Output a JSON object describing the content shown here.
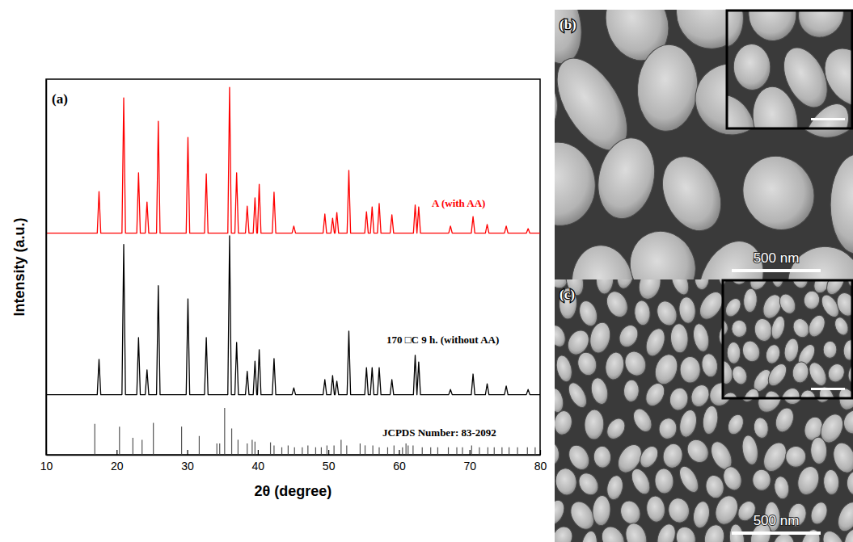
{
  "chart_data": {
    "type": "line",
    "panel_label": "(a)",
    "xlabel": "2θ (degree)",
    "ylabel": "Intensity (a.u.)",
    "xlim": [
      10,
      80
    ],
    "xticks": [
      10,
      20,
      30,
      40,
      50,
      60,
      70,
      80
    ],
    "ylim": [
      0,
      100
    ],
    "yticks": [],
    "tick_labels": "x",
    "x": [
      10,
      17.25,
      17.5,
      17.75,
      20.75,
      21,
      21.25,
      22.85,
      23.1,
      23.35,
      24.05,
      24.3,
      24.55,
      25.65,
      25.9,
      26.15,
      29.85,
      30.1,
      30.35,
      32.45,
      32.7,
      32.95,
      35.75,
      36,
      36.25,
      36.75,
      37,
      37.25,
      38.25,
      38.5,
      38.75,
      39.35,
      39.6,
      39.85,
      39.95,
      40.2,
      40.45,
      42.05,
      42.3,
      42.55,
      44.85,
      45.1,
      45.35,
      49.25,
      49.5,
      49.75,
      50.35,
      50.6,
      50.85,
      50.95,
      51.2,
      51.45,
      52.65,
      52.9,
      53.15,
      55.15,
      55.4,
      55.65,
      55.95,
      56.2,
      56.45,
      56.95,
      57.2,
      57.45,
      58.75,
      59,
      59.25,
      62.05,
      62.3,
      62.55,
      62.55,
      62.8,
      63.05,
      67.05,
      67.3,
      67.55,
      70.25,
      70.5,
      70.75,
      72.25,
      72.5,
      72.75,
      74.95,
      75.2,
      75.45,
      78.05,
      78.3,
      78.55,
      80
    ],
    "series": [
      {
        "name": "A (with AA)",
        "color": "#ff0000",
        "values": [
          59,
          59,
          70.1,
          59,
          59,
          95,
          59,
          59,
          75.1,
          59,
          59,
          67.3,
          59,
          59,
          88.8,
          59,
          59,
          84.5,
          59,
          59,
          74.8,
          59,
          59,
          97.8,
          59,
          59,
          75.1,
          59,
          59,
          66.2,
          59,
          59,
          68.4,
          59,
          59,
          72,
          59,
          59,
          69.9,
          59,
          59,
          60.9,
          59,
          59,
          64.1,
          59,
          59,
          63,
          59,
          59,
          64.5,
          59,
          59,
          75.7,
          59,
          59,
          64.7,
          59,
          59,
          66,
          59,
          59,
          66.9,
          59,
          59,
          63.9,
          59,
          59,
          66.5,
          59,
          59,
          66,
          59,
          59,
          60.9,
          59,
          59,
          63.4,
          59,
          59,
          61.3,
          59,
          59,
          60.9,
          59,
          59,
          60.2,
          59,
          59
        ]
      },
      {
        "name": "170 □C 9 h. (without AA)",
        "color": "#000000",
        "values": [
          16,
          16,
          25.4,
          16,
          16,
          56,
          16,
          16,
          31.2,
          16,
          16,
          22.6,
          16,
          16,
          45,
          16,
          16,
          41.5,
          16,
          16,
          31.2,
          16,
          16,
          58.3,
          16,
          16,
          29.9,
          16,
          16,
          22.2,
          16,
          16,
          24.9,
          16,
          16,
          28,
          16,
          16,
          25.6,
          16,
          16,
          17.8,
          16,
          16,
          20,
          16,
          16,
          21.1,
          16,
          16,
          19.6,
          16,
          16,
          32.9,
          16,
          16,
          23.2,
          16,
          16,
          23.2,
          16,
          16,
          23.2,
          16,
          16,
          20,
          16,
          16,
          26.5,
          16,
          16,
          24.7,
          16,
          16,
          17.4,
          16,
          16,
          21.5,
          16,
          16,
          18.9,
          16,
          16,
          18.3,
          16,
          16,
          17.4,
          16,
          16
        ]
      },
      {
        "name": "JCPDS Number: 83-2092",
        "type": "stick",
        "color": "#555555",
        "x": [
          16.9,
          20.4,
          22.3,
          23.6,
          25.2,
          29.2,
          31.7,
          34.2,
          34.6,
          35.3,
          36.3,
          37.2,
          38.5,
          39.2,
          39.6,
          41.8,
          42.3,
          43.4,
          44.3,
          45.2,
          46.3,
          47.1,
          48.2,
          49.0,
          49.8,
          50.8,
          51.8,
          52.6,
          54.5,
          55.2,
          56.3,
          57.2,
          58.4,
          59.3,
          60.5,
          61.0,
          61.3,
          62.0,
          63.3,
          64.5,
          65.5,
          67.0,
          68.2,
          69.0,
          70.3,
          71.4,
          72.6,
          73.5,
          74.6,
          75.6,
          76.8,
          78.2,
          79.3
        ],
        "values": [
          8.2,
          7.5,
          4.5,
          4,
          8.5,
          7.5,
          5,
          3,
          3,
          12.5,
          7,
          4,
          3,
          4,
          3.5,
          3.3,
          2.5,
          2,
          2.5,
          2,
          2,
          2.5,
          2,
          2,
          2.5,
          2.5,
          4,
          2.5,
          3,
          2.5,
          2.5,
          2,
          2,
          2.5,
          2,
          3,
          2.5,
          2.5,
          2,
          2,
          2,
          2,
          2,
          2,
          2.5,
          2,
          2,
          2,
          2,
          2,
          2,
          2,
          2
        ]
      }
    ]
  },
  "images": [
    {
      "label": "(b)",
      "scale_bar": "500 nm"
    },
    {
      "label": "(c)",
      "scale_bar": "500 nm"
    }
  ]
}
